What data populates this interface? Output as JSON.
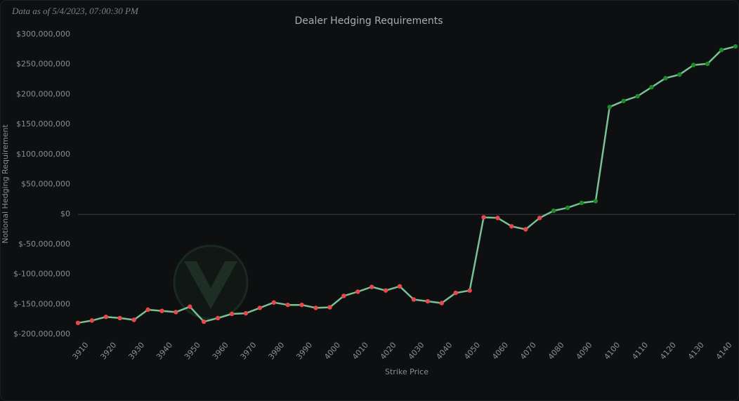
{
  "note": "Data as of 5/4/2023, 07:00:30 PM",
  "chart_data": {
    "type": "line",
    "title": "Dealer Hedging Requirements",
    "x_label": "Strike Price",
    "y_label": "Notional Hedging Requirement",
    "x": [
      3910,
      3915,
      3920,
      3925,
      3930,
      3935,
      3940,
      3945,
      3950,
      3955,
      3960,
      3965,
      3970,
      3975,
      3980,
      3985,
      3990,
      3995,
      4000,
      4005,
      4010,
      4015,
      4020,
      4025,
      4030,
      4035,
      4040,
      4045,
      4050,
      4055,
      4060,
      4065,
      4070,
      4075,
      4080,
      4085,
      4090,
      4095,
      4100,
      4105,
      4110,
      4115,
      4120,
      4125,
      4130,
      4135,
      4140,
      4145
    ],
    "values": [
      -181000000,
      -177000000,
      -171000000,
      -173000000,
      -176000000,
      -159000000,
      -161000000,
      -163000000,
      -154000000,
      -179000000,
      -173000000,
      -166000000,
      -165000000,
      -156000000,
      -147000000,
      -151000000,
      -151000000,
      -156000000,
      -155000000,
      -136000000,
      -129000000,
      -121000000,
      -127000000,
      -120000000,
      -142000000,
      -145000000,
      -148000000,
      -131000000,
      -127000000,
      -5000000,
      -6000000,
      -20000000,
      -25000000,
      -6000000,
      6000000,
      11000000,
      19000000,
      22000000,
      179000000,
      189000000,
      197000000,
      212000000,
      227000000,
      233000000,
      249000000,
      251000000,
      274000000,
      280000000
    ],
    "color": "#78c095",
    "point_colors": {
      "negative": "#e8484c",
      "positive": "#1f8a2a"
    },
    "xlim": [
      3910,
      4145
    ],
    "xticks": [
      3910,
      3920,
      3930,
      3940,
      3950,
      3960,
      3970,
      3980,
      3990,
      4000,
      4010,
      4020,
      4030,
      4040,
      4050,
      4060,
      4070,
      4080,
      4090,
      4100,
      4110,
      4120,
      4130,
      4140
    ],
    "ylim": [
      -200000000,
      300000000
    ],
    "yticks": [
      {
        "value": -200000000,
        "label": "$-200,000,000"
      },
      {
        "value": -150000000,
        "label": "$-150,000,000"
      },
      {
        "value": -100000000,
        "label": "$-100,000,000"
      },
      {
        "value": -50000000,
        "label": "$-50,000,000"
      },
      {
        "value": 0,
        "label": "$0"
      },
      {
        "value": 50000000,
        "label": "$50,000,000"
      },
      {
        "value": 100000000,
        "label": "$100,000,000"
      },
      {
        "value": 150000000,
        "label": "$150,000,000"
      },
      {
        "value": 200000000,
        "label": "$200,000,000"
      },
      {
        "value": 250000000,
        "label": "$250,000,000"
      },
      {
        "value": 300000000,
        "label": "$300,000,000"
      }
    ]
  }
}
